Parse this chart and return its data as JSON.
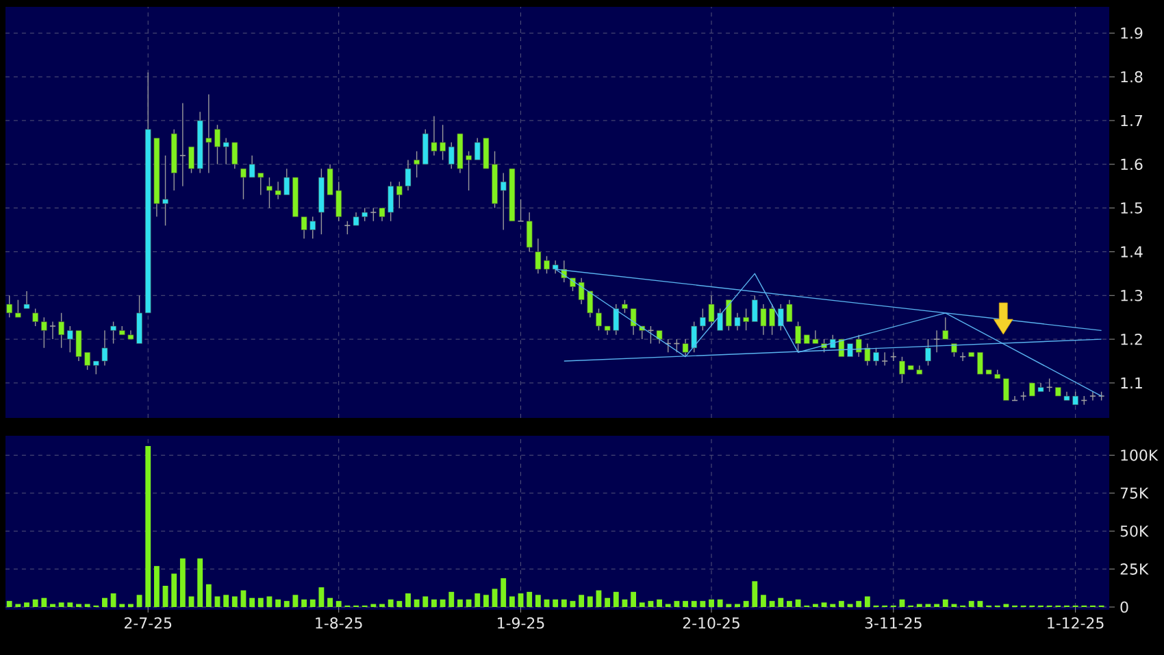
{
  "chart_data": [
    {
      "type": "candlestick",
      "categories": [
        null,
        null,
        null,
        null,
        null,
        null,
        null,
        null,
        null,
        null,
        null,
        null,
        null,
        null,
        null,
        null,
        null,
        null,
        null,
        null,
        null,
        null,
        null,
        null,
        null,
        null,
        null,
        null,
        null,
        null,
        null,
        null,
        null,
        null,
        null,
        null,
        null,
        null,
        null,
        null,
        null,
        null,
        null,
        null,
        null,
        null,
        null,
        null,
        null,
        null,
        null,
        null,
        null,
        null,
        null,
        null,
        null,
        null,
        null,
        null,
        null,
        null,
        null,
        null,
        null,
        null,
        null,
        null,
        null,
        null,
        null,
        null,
        null,
        null,
        null,
        null,
        null,
        null,
        null,
        null,
        null,
        null,
        null,
        null,
        null,
        null,
        null,
        null,
        null,
        null,
        null,
        null,
        null,
        null,
        null,
        null,
        null,
        null,
        null,
        null,
        null,
        null,
        null,
        null,
        null,
        null,
        null,
        null,
        null,
        null,
        null,
        null,
        null,
        null,
        null,
        null,
        null,
        null,
        null,
        null,
        null,
        null,
        null,
        null,
        null,
        null,
        null
      ],
      "ohlc": [
        [
          1.28,
          1.3,
          1.25,
          1.26
        ],
        [
          1.26,
          1.29,
          1.25,
          1.25
        ],
        [
          1.27,
          1.31,
          1.27,
          1.28
        ],
        [
          1.26,
          1.27,
          1.23,
          1.24
        ],
        [
          1.24,
          1.25,
          1.18,
          1.22
        ],
        [
          1.23,
          1.24,
          1.2,
          1.23
        ],
        [
          1.24,
          1.26,
          1.18,
          1.21
        ],
        [
          1.2,
          1.23,
          1.17,
          1.22
        ],
        [
          1.22,
          1.22,
          1.15,
          1.16
        ],
        [
          1.17,
          1.17,
          1.13,
          1.14
        ],
        [
          1.14,
          1.15,
          1.12,
          1.15
        ],
        [
          1.15,
          1.22,
          1.14,
          1.18
        ],
        [
          1.22,
          1.24,
          1.19,
          1.23
        ],
        [
          1.22,
          1.23,
          1.21,
          1.21
        ],
        [
          1.21,
          1.22,
          1.2,
          1.2
        ],
        [
          1.19,
          1.3,
          1.19,
          1.26
        ],
        [
          1.26,
          1.81,
          1.26,
          1.68
        ],
        [
          1.66,
          1.66,
          1.48,
          1.51
        ],
        [
          1.51,
          1.62,
          1.46,
          1.52
        ],
        [
          1.67,
          1.68,
          1.54,
          1.58
        ],
        [
          1.62,
          1.74,
          1.55,
          1.62
        ],
        [
          1.64,
          1.64,
          1.58,
          1.59
        ],
        [
          1.59,
          1.72,
          1.58,
          1.7
        ],
        [
          1.66,
          1.76,
          1.58,
          1.65
        ],
        [
          1.68,
          1.69,
          1.6,
          1.64
        ],
        [
          1.64,
          1.66,
          1.6,
          1.65
        ],
        [
          1.65,
          1.65,
          1.59,
          1.6
        ],
        [
          1.59,
          1.59,
          1.52,
          1.57
        ],
        [
          1.57,
          1.62,
          1.57,
          1.6
        ],
        [
          1.58,
          1.58,
          1.53,
          1.57
        ],
        [
          1.55,
          1.57,
          1.5,
          1.54
        ],
        [
          1.54,
          1.56,
          1.52,
          1.53
        ],
        [
          1.53,
          1.59,
          1.53,
          1.57
        ],
        [
          1.57,
          1.57,
          1.48,
          1.48
        ],
        [
          1.48,
          1.48,
          1.43,
          1.45
        ],
        [
          1.45,
          1.48,
          1.43,
          1.47
        ],
        [
          1.49,
          1.59,
          1.44,
          1.57
        ],
        [
          1.59,
          1.6,
          1.53,
          1.53
        ],
        [
          1.54,
          1.56,
          1.47,
          1.48
        ],
        [
          1.46,
          1.47,
          1.44,
          1.46
        ],
        [
          1.46,
          1.49,
          1.46,
          1.48
        ],
        [
          1.48,
          1.5,
          1.47,
          1.49
        ],
        [
          1.49,
          1.5,
          1.47,
          1.49
        ],
        [
          1.5,
          1.5,
          1.47,
          1.48
        ],
        [
          1.49,
          1.56,
          1.47,
          1.55
        ],
        [
          1.55,
          1.56,
          1.5,
          1.53
        ],
        [
          1.55,
          1.61,
          1.54,
          1.59
        ],
        [
          1.61,
          1.63,
          1.57,
          1.6
        ],
        [
          1.6,
          1.68,
          1.6,
          1.67
        ],
        [
          1.65,
          1.71,
          1.62,
          1.63
        ],
        [
          1.65,
          1.69,
          1.61,
          1.63
        ],
        [
          1.6,
          1.65,
          1.59,
          1.64
        ],
        [
          1.67,
          1.67,
          1.58,
          1.59
        ],
        [
          1.62,
          1.63,
          1.54,
          1.61
        ],
        [
          1.61,
          1.66,
          1.61,
          1.65
        ],
        [
          1.66,
          1.66,
          1.59,
          1.59
        ],
        [
          1.6,
          1.63,
          1.5,
          1.51
        ],
        [
          1.54,
          1.58,
          1.45,
          1.56
        ],
        [
          1.59,
          1.59,
          1.47,
          1.47
        ],
        [
          1.47,
          1.52,
          1.47,
          1.47
        ],
        [
          1.47,
          1.49,
          1.4,
          1.41
        ],
        [
          1.4,
          1.43,
          1.35,
          1.36
        ],
        [
          1.38,
          1.39,
          1.35,
          1.36
        ],
        [
          1.36,
          1.38,
          1.35,
          1.37
        ],
        [
          1.36,
          1.38,
          1.33,
          1.34
        ],
        [
          1.34,
          1.34,
          1.31,
          1.32
        ],
        [
          1.33,
          1.34,
          1.28,
          1.29
        ],
        [
          1.31,
          1.31,
          1.25,
          1.26
        ],
        [
          1.26,
          1.27,
          1.22,
          1.23
        ],
        [
          1.23,
          1.23,
          1.21,
          1.22
        ],
        [
          1.22,
          1.28,
          1.21,
          1.27
        ],
        [
          1.28,
          1.29,
          1.26,
          1.27
        ],
        [
          1.27,
          1.27,
          1.21,
          1.23
        ],
        [
          1.23,
          1.23,
          1.2,
          1.22
        ],
        [
          1.22,
          1.23,
          1.19,
          1.22
        ],
        [
          1.22,
          1.22,
          1.19,
          1.2
        ],
        [
          1.19,
          1.2,
          1.17,
          1.19
        ],
        [
          1.19,
          1.2,
          1.17,
          1.19
        ],
        [
          1.19,
          1.2,
          1.16,
          1.17
        ],
        [
          1.18,
          1.24,
          1.17,
          1.23
        ],
        [
          1.23,
          1.27,
          1.22,
          1.25
        ],
        [
          1.28,
          1.3,
          1.23,
          1.24
        ],
        [
          1.22,
          1.27,
          1.22,
          1.26
        ],
        [
          1.29,
          1.29,
          1.22,
          1.23
        ],
        [
          1.23,
          1.26,
          1.22,
          1.25
        ],
        [
          1.25,
          1.27,
          1.22,
          1.24
        ],
        [
          1.24,
          1.3,
          1.24,
          1.29
        ],
        [
          1.27,
          1.28,
          1.21,
          1.23
        ],
        [
          1.27,
          1.28,
          1.21,
          1.23
        ],
        [
          1.23,
          1.28,
          1.22,
          1.27
        ],
        [
          1.28,
          1.29,
          1.24,
          1.24
        ],
        [
          1.23,
          1.24,
          1.17,
          1.19
        ],
        [
          1.21,
          1.21,
          1.19,
          1.19
        ],
        [
          1.2,
          1.22,
          1.19,
          1.19
        ],
        [
          1.19,
          1.2,
          1.17,
          1.18
        ],
        [
          1.18,
          1.21,
          1.18,
          1.2
        ],
        [
          1.2,
          1.2,
          1.16,
          1.16
        ],
        [
          1.16,
          1.19,
          1.16,
          1.19
        ],
        [
          1.2,
          1.21,
          1.16,
          1.17
        ],
        [
          1.18,
          1.19,
          1.14,
          1.15
        ],
        [
          1.15,
          1.18,
          1.14,
          1.17
        ],
        [
          1.15,
          1.17,
          1.14,
          1.15
        ],
        [
          1.16,
          1.17,
          1.15,
          1.16
        ],
        [
          1.15,
          1.16,
          1.1,
          1.12
        ],
        [
          1.14,
          1.14,
          1.13,
          1.13
        ],
        [
          1.13,
          1.14,
          1.12,
          1.12
        ],
        [
          1.15,
          1.2,
          1.14,
          1.18
        ],
        [
          1.2,
          1.22,
          1.17,
          1.2
        ],
        [
          1.22,
          1.25,
          1.2,
          1.2
        ],
        [
          1.19,
          1.19,
          1.16,
          1.17
        ],
        [
          1.16,
          1.17,
          1.15,
          1.16
        ],
        [
          1.17,
          1.17,
          1.16,
          1.16
        ],
        [
          1.17,
          1.17,
          1.12,
          1.12
        ],
        [
          1.13,
          1.13,
          1.12,
          1.12
        ],
        [
          1.12,
          1.13,
          1.11,
          1.11
        ],
        [
          1.11,
          1.11,
          1.06,
          1.06
        ],
        [
          1.06,
          1.07,
          1.06,
          1.06
        ],
        [
          1.07,
          1.08,
          1.06,
          1.07
        ],
        [
          1.1,
          1.1,
          1.07,
          1.07
        ],
        [
          1.08,
          1.1,
          1.08,
          1.09
        ],
        [
          1.09,
          1.11,
          1.08,
          1.09
        ],
        [
          1.09,
          1.09,
          1.07,
          1.07
        ],
        [
          1.06,
          1.08,
          1.06,
          1.07
        ],
        [
          1.05,
          1.08,
          1.05,
          1.07
        ],
        [
          1.06,
          1.07,
          1.05,
          1.06
        ],
        [
          1.07,
          1.08,
          1.06,
          1.07
        ],
        [
          1.07,
          1.08,
          1.06,
          1.07
        ]
      ],
      "colors": [
        "#80f020",
        "#80f020",
        "#30e0f0",
        "#80f020",
        "#80f020",
        "#a0a0a0",
        "#80f020",
        "#30e0f0",
        "#80f020",
        "#80f020",
        "#30e0f0",
        "#30e0f0",
        "#30e0f0",
        "#80f020",
        "#80f020",
        "#30e0f0",
        "#30e0f0",
        "#80f020",
        "#30e0f0",
        "#80f020",
        "#a0a0a0",
        "#80f020",
        "#30e0f0",
        "#80f020",
        "#80f020",
        "#30e0f0",
        "#80f020",
        "#80f020",
        "#30e0f0",
        "#80f020",
        "#80f020",
        "#80f020",
        "#30e0f0",
        "#80f020",
        "#80f020",
        "#30e0f0",
        "#30e0f0",
        "#80f020",
        "#80f020",
        "#a0a0a0",
        "#30e0f0",
        "#30e0f0",
        "#a0a0a0",
        "#80f020",
        "#30e0f0",
        "#80f020",
        "#30e0f0",
        "#80f020",
        "#30e0f0",
        "#80f020",
        "#80f020",
        "#30e0f0",
        "#80f020",
        "#80f020",
        "#30e0f0",
        "#80f020",
        "#80f020",
        "#30e0f0",
        "#80f020",
        "#a0a0a0",
        "#80f020",
        "#80f020",
        "#80f020",
        "#30e0f0",
        "#80f020",
        "#80f020",
        "#80f020",
        "#80f020",
        "#80f020",
        "#80f020",
        "#30e0f0",
        "#80f020",
        "#80f020",
        "#80f020",
        "#a0a0a0",
        "#80f020",
        "#a0a0a0",
        "#a0a0a0",
        "#80f020",
        "#30e0f0",
        "#30e0f0",
        "#80f020",
        "#30e0f0",
        "#80f020",
        "#30e0f0",
        "#80f020",
        "#30e0f0",
        "#80f020",
        "#80f020",
        "#30e0f0",
        "#80f020",
        "#80f020",
        "#80f020",
        "#80f020",
        "#80f020",
        "#30e0f0",
        "#80f020",
        "#30e0f0",
        "#80f020",
        "#80f020",
        "#30e0f0",
        "#a0a0a0",
        "#a0a0a0",
        "#80f020",
        "#80f020",
        "#80f020",
        "#30e0f0",
        "#a0a0a0",
        "#80f020",
        "#80f020",
        "#a0a0a0",
        "#80f020",
        "#80f020",
        "#80f020",
        "#80f020",
        "#80f020",
        "#a0a0a0",
        "#a0a0a0",
        "#80f020",
        "#30e0f0",
        "#a0a0a0",
        "#80f020",
        "#30e0f0",
        "#30e0f0",
        "#a0a0a0",
        "#a0a0a0",
        "#a0a0a0"
      ],
      "series": [
        {
          "type": "line",
          "color": "#5ab4f0",
          "values": [
            null,
            null,
            null,
            null,
            null,
            null,
            null,
            null,
            null,
            null,
            null,
            null,
            null,
            null,
            null,
            null,
            null,
            null,
            null,
            null,
            null,
            null,
            null,
            null,
            null,
            null,
            null,
            null,
            null,
            null,
            null,
            null,
            null,
            null,
            null,
            null,
            null,
            null,
            null,
            null,
            null,
            null,
            null,
            null,
            null,
            null,
            null,
            null,
            null,
            null,
            null,
            null,
            null,
            null,
            null,
            null,
            null,
            null,
            null,
            null,
            null,
            null,
            null,
            1.36,
            null,
            null,
            null,
            null,
            null,
            null,
            null,
            null,
            null,
            null,
            null,
            null,
            null,
            null,
            null,
            null,
            null,
            null,
            null,
            null,
            null,
            null,
            null,
            null,
            null,
            null,
            null,
            null,
            null,
            null,
            null,
            null,
            null,
            null,
            null,
            null,
            null,
            null,
            null,
            null,
            null,
            null,
            null,
            null,
            null,
            null,
            null,
            null,
            null,
            null,
            null,
            null,
            null,
            null,
            null,
            null,
            null,
            null,
            null,
            null,
            null,
            null,
            1.22
          ]
        },
        {
          "type": "line",
          "color": "#5ab4f0",
          "values": [
            null,
            null,
            null,
            null,
            null,
            null,
            null,
            null,
            null,
            null,
            null,
            null,
            null,
            null,
            null,
            null,
            null,
            null,
            null,
            null,
            null,
            null,
            null,
            null,
            null,
            null,
            null,
            null,
            null,
            null,
            null,
            null,
            null,
            null,
            null,
            null,
            null,
            null,
            null,
            null,
            null,
            null,
            null,
            null,
            null,
            null,
            null,
            null,
            null,
            null,
            null,
            null,
            null,
            null,
            null,
            null,
            null,
            null,
            null,
            null,
            null,
            null,
            null,
            null,
            1.15,
            null,
            null,
            null,
            null,
            null,
            null,
            null,
            null,
            null,
            null,
            null,
            null,
            null,
            null,
            null,
            null,
            null,
            null,
            null,
            null,
            null,
            null,
            null,
            null,
            null,
            null,
            null,
            null,
            null,
            null,
            null,
            null,
            null,
            null,
            null,
            null,
            null,
            null,
            null,
            null,
            null,
            null,
            null,
            null,
            null,
            null,
            null,
            null,
            null,
            null,
            null,
            null,
            null,
            null,
            null,
            null,
            null,
            null,
            null,
            null,
            null,
            1.2
          ]
        },
        {
          "type": "line",
          "color": "#5ab4f0",
          "values": [
            null,
            null,
            null,
            null,
            null,
            null,
            null,
            null,
            null,
            null,
            null,
            null,
            null,
            null,
            null,
            null,
            null,
            null,
            null,
            null,
            null,
            null,
            null,
            null,
            null,
            null,
            null,
            null,
            null,
            null,
            null,
            null,
            null,
            null,
            null,
            null,
            null,
            null,
            null,
            null,
            null,
            null,
            null,
            null,
            null,
            null,
            null,
            null,
            null,
            null,
            null,
            null,
            null,
            null,
            null,
            null,
            null,
            null,
            null,
            null,
            null,
            null,
            null,
            1.36,
            null,
            null,
            null,
            null,
            null,
            null,
            null,
            null,
            null,
            null,
            null,
            null,
            null,
            null,
            1.16,
            null,
            null,
            null,
            null,
            null,
            null,
            null,
            1.35,
            null,
            null,
            null,
            null,
            1.17,
            null,
            null,
            null,
            null,
            null,
            null,
            null,
            null,
            null,
            null,
            null,
            null,
            null,
            null,
            null,
            null,
            1.26,
            null,
            null,
            null,
            null,
            null,
            null,
            null,
            null,
            null,
            null,
            null,
            null,
            null,
            null,
            null,
            null,
            null,
            1.07
          ]
        }
      ],
      "ylim": [
        1.02,
        1.96
      ],
      "yticks": [
        1.1,
        1.2,
        1.3,
        1.4,
        1.5,
        1.6,
        1.7,
        1.8,
        1.9
      ],
      "grid": true,
      "tick_labels": "y"
    },
    {
      "type": "bar",
      "categories": [
        null,
        null,
        null,
        null,
        null,
        null,
        null,
        null,
        null,
        null,
        null,
        null,
        null,
        null,
        null,
        null,
        "2-7-25",
        null,
        null,
        null,
        null,
        null,
        null,
        null,
        null,
        null,
        null,
        null,
        null,
        null,
        null,
        null,
        null,
        null,
        null,
        null,
        null,
        null,
        "1-8-25",
        null,
        null,
        null,
        null,
        null,
        null,
        null,
        null,
        null,
        null,
        null,
        null,
        null,
        null,
        null,
        null,
        null,
        null,
        null,
        null,
        "1-9-25",
        null,
        null,
        null,
        null,
        null,
        null,
        null,
        null,
        null,
        null,
        null,
        null,
        null,
        null,
        null,
        null,
        null,
        null,
        null,
        null,
        null,
        "2-10-25",
        null,
        null,
        null,
        null,
        null,
        null,
        null,
        null,
        null,
        null,
        null,
        null,
        null,
        null,
        null,
        null,
        null,
        null,
        null,
        null,
        "3-11-25",
        null,
        null,
        null,
        null,
        null,
        null,
        null,
        null,
        null,
        null,
        null,
        null,
        null,
        null,
        null,
        null,
        null,
        null,
        null,
        null,
        "1-12-25",
        null,
        null,
        null
      ],
      "values": [
        4000,
        2000,
        3000,
        5000,
        6000,
        2000,
        3000,
        3000,
        2000,
        2000,
        1000,
        6000,
        9000,
        2000,
        2000,
        8000,
        106000,
        27000,
        14000,
        22000,
        32000,
        7000,
        32000,
        15000,
        7000,
        8000,
        7000,
        11000,
        6000,
        6000,
        7000,
        5000,
        4000,
        8000,
        5000,
        5000,
        13000,
        6000,
        4000,
        1000,
        1000,
        1000,
        2000,
        2000,
        5000,
        4000,
        9000,
        5000,
        7000,
        5000,
        5000,
        10000,
        5000,
        5000,
        9000,
        8000,
        12000,
        19000,
        7000,
        9000,
        10000,
        8000,
        5000,
        5000,
        5000,
        4000,
        8000,
        7000,
        11000,
        6000,
        10000,
        5000,
        10000,
        3000,
        4000,
        5000,
        2000,
        4000,
        4000,
        4000,
        4000,
        5000,
        5000,
        2000,
        2000,
        4000,
        17000,
        8000,
        4000,
        6000,
        4000,
        5000,
        1000,
        2000,
        3000,
        2000,
        4000,
        2000,
        4000,
        7000,
        1000,
        1000,
        1000,
        5000,
        1000,
        2000,
        2000,
        2000,
        5000,
        2000,
        1000,
        4000,
        4000,
        1000,
        1000,
        2000,
        1000,
        1000,
        1000,
        1000,
        1000,
        1000,
        1000,
        1000,
        1000,
        1000,
        1000
      ],
      "color": "#7cf01c",
      "ylim": [
        0,
        111000
      ],
      "yticks": [
        0,
        {
          "value": 25000,
          "label": "25K"
        },
        {
          "value": 50000,
          "label": "50K"
        },
        {
          "value": 75000,
          "label": "75K"
        },
        {
          "value": 100000,
          "label": "100K"
        }
      ],
      "grid": true
    }
  ]
}
